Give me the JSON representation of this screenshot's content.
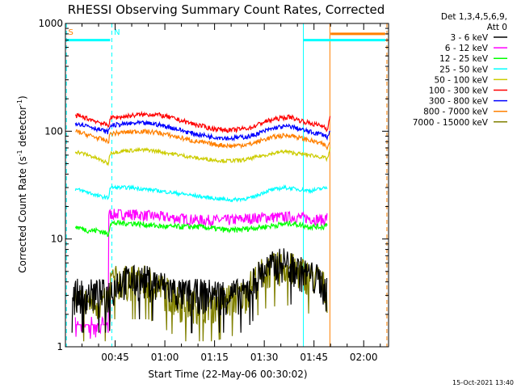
{
  "chart_data": {
    "type": "line",
    "title": "RHESSI Observing Summary Count Rates, Corrected",
    "xlabel": "Start Time (22-May-06 00:30:02)",
    "ylabel": "Corrected Count Rate (s",
    "ylabel_sup1": "-1",
    "ylabel_mid": " detector",
    "ylabel_sup2": "-1",
    "ylabel_end": ")",
    "yscale": "log",
    "ylim": [
      1,
      1000
    ],
    "xlim_minutes": [
      30.0,
      127.5
    ],
    "x_ticks": [
      {
        "m": 45,
        "label": "00:45"
      },
      {
        "m": 60,
        "label": "01:00"
      },
      {
        "m": 75,
        "label": "01:15"
      },
      {
        "m": 90,
        "label": "01:30"
      },
      {
        "m": 105,
        "label": "01:45"
      },
      {
        "m": 120,
        "label": "02:00"
      }
    ],
    "y_ticks": [
      {
        "v": 1,
        "label": "1"
      },
      {
        "v": 10,
        "label": "10"
      },
      {
        "v": 100,
        "label": "100"
      },
      {
        "v": 1000,
        "label": "1000"
      }
    ],
    "legend": {
      "header": [
        "Det 1,3,4,5,6,9,",
        "Att 0"
      ],
      "placement": "right"
    },
    "series": [
      {
        "name": "3 - 6 keV",
        "color": "#000000",
        "x": [
          32,
          43,
          46,
          55,
          65,
          75,
          84,
          90,
          96,
          100,
          107,
          109
        ],
        "y": [
          3.0,
          3.0,
          4.0,
          4.0,
          3.0,
          3.0,
          3.0,
          5.0,
          6.0,
          5.0,
          4.0,
          3.0
        ]
      },
      {
        "name": "6 - 12 keV",
        "color": "#ff00ff",
        "x": [
          33,
          42.5,
          43,
          50,
          60,
          70,
          80,
          90,
          100,
          108,
          109
        ],
        "y": [
          1.5,
          1.5,
          17,
          17,
          16,
          15,
          15,
          16,
          16,
          15,
          16
        ]
      },
      {
        "name": "12 - 25 keV",
        "color": "#00ff00",
        "x": [
          33,
          37,
          40,
          43,
          43.5,
          50,
          60,
          70,
          80,
          90,
          98,
          104,
          108,
          109
        ],
        "y": [
          13,
          12,
          12,
          11,
          14,
          14,
          13,
          13,
          12,
          13,
          14,
          13,
          13,
          14
        ]
      },
      {
        "name": "25 - 50 keV",
        "color": "#00ffff",
        "x": [
          33,
          37,
          40,
          43,
          43.5,
          50,
          58,
          66,
          74,
          80,
          86,
          91,
          96,
          100,
          104,
          109
        ],
        "y": [
          29,
          27,
          25,
          24,
          30,
          30,
          28,
          26,
          24,
          23,
          24,
          28,
          30,
          29,
          28,
          30
        ]
      },
      {
        "name": "50 - 100 keV",
        "color": "#cccc00",
        "x": [
          33,
          37,
          40,
          43,
          43.5,
          48,
          55,
          62,
          70,
          78,
          84,
          90,
          96,
          100,
          104,
          108,
          109,
          110
        ],
        "y": [
          65,
          60,
          55,
          50,
          63,
          66,
          67,
          62,
          56,
          53,
          54,
          60,
          65,
          62,
          60,
          57,
          55,
          70
        ]
      },
      {
        "name": "100 - 300 keV",
        "color": "#ff0000",
        "x": [
          33,
          37,
          40,
          43,
          43.5,
          47,
          52,
          57,
          62,
          68,
          74,
          80,
          86,
          90,
          94,
          98,
          100,
          104,
          108,
          109,
          110
        ],
        "y": [
          140,
          130,
          122,
          112,
          133,
          136,
          142,
          144,
          133,
          118,
          106,
          102,
          108,
          122,
          131,
          136,
          128,
          118,
          111,
          104,
          140
        ]
      },
      {
        "name": "300 - 800 keV",
        "color": "#0000ff",
        "x": [
          33,
          37,
          40,
          43,
          43.5,
          47,
          52,
          57,
          62,
          68,
          74,
          80,
          86,
          90,
          94,
          98,
          100,
          104,
          108,
          109,
          110
        ],
        "y": [
          120,
          112,
          104,
          98,
          113,
          116,
          119,
          117,
          108,
          96,
          89,
          86,
          90,
          100,
          109,
          111,
          106,
          98,
          93,
          88,
          100
        ]
      },
      {
        "name": "800 - 7000 keV",
        "color": "#ff8000",
        "x": [
          33,
          37,
          40,
          43,
          43.5,
          47,
          52,
          57,
          62,
          68,
          74,
          80,
          86,
          90,
          94,
          98,
          100,
          104,
          108,
          109,
          110
        ],
        "y": [
          100,
          92,
          86,
          80,
          95,
          97,
          100,
          98,
          91,
          82,
          76,
          73,
          76,
          84,
          90,
          92,
          88,
          82,
          75,
          70,
          80
        ]
      },
      {
        "name": "7000 - 15000 keV",
        "color": "#808000",
        "x": [
          33,
          43,
          43.5,
          55,
          65,
          75,
          84,
          90,
          96,
          100,
          107,
          109
        ],
        "y": [
          2.5,
          2.5,
          4.0,
          4.0,
          2.5,
          2.5,
          3.0,
          5.0,
          5.5,
          5.0,
          4.0,
          3.0
        ]
      }
    ],
    "annotations": [
      {
        "label": "S",
        "m": 30.6,
        "color": "#ff8000"
      },
      {
        "label": "N",
        "m": 44.4,
        "color": "#00ffff"
      }
    ],
    "segments": [
      {
        "from": 30.3,
        "to": 43.5,
        "y": 700,
        "color": "#00ffff"
      },
      {
        "from": 101.8,
        "to": 126.5,
        "y": 700,
        "color": "#00ffff"
      },
      {
        "from": 110.0,
        "to": 126.5,
        "y": 800,
        "color": "#ff8000"
      }
    ],
    "vlines": [
      {
        "m": 30.3,
        "color": "#00ffff"
      },
      {
        "m": 44.0,
        "color": "#00ffff"
      },
      {
        "m": 127.0,
        "color": "#ff8000"
      }
    ],
    "solid_vlines": [
      {
        "m": 101.8,
        "color": "#00ffff"
      },
      {
        "m": 109.8,
        "color": "#ff8000"
      }
    ]
  },
  "footer": {
    "timestamp": "15-Oct-2021 13:40"
  }
}
